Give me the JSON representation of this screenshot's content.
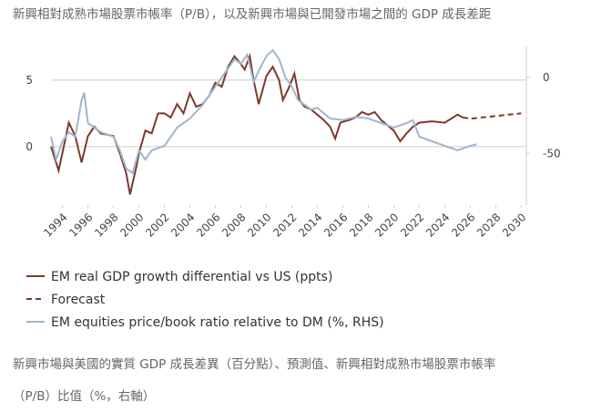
{
  "chart_data": {
    "type": "line",
    "title": "新興相對成熟市場股票市帳率（P/B），以及新興市場與已開發市場之間的 GDP 成長差距",
    "caption": [
      "新興市場與美國的實質 GDP 成長差異（百分點）、預測值、新興相對成熟市場股票市帳率",
      "（P/B）比值（%，右軸）"
    ],
    "xlim": [
      1993.1,
      2030.4
    ],
    "xticks": [
      1994,
      1996,
      1998,
      2000,
      2002,
      2004,
      2006,
      2008,
      2010,
      2012,
      2014,
      2016,
      2018,
      2020,
      2022,
      2024,
      2026,
      2028,
      2030
    ],
    "ylim": [
      -4.4,
      7.6
    ],
    "yticks": [
      0,
      5
    ],
    "y2lim": [
      -84,
      21
    ],
    "y2ticks": [
      -50,
      0
    ],
    "grid": true,
    "series": [
      {
        "name": "EM real GDP growth differential vs US (ppts)",
        "color": "#7b3a2c",
        "line_style": "solid",
        "x": [
          1993.1,
          1993.7,
          1994.5,
          1995,
          1995.5,
          1996,
          1996.5,
          1997,
          1998,
          1998.5,
          1999,
          1999.3,
          1999.8,
          2000,
          2000.5,
          2001,
          2001.5,
          2002,
          2002.5,
          2003,
          2003.5,
          2004,
          2004.5,
          2005,
          2005.5,
          2006,
          2006.5,
          2007,
          2007.5,
          2008,
          2008.3,
          2008.7,
          2009,
          2009.4,
          2010,
          2010.5,
          2011,
          2011.3,
          2011.8,
          2012.2,
          2012.6,
          2013,
          2013.5,
          2014,
          2014.5,
          2015,
          2015.4,
          2015.8,
          2016.5,
          2017,
          2017.5,
          2018,
          2018.5,
          2019,
          2019.5,
          2020,
          2020.5,
          2021,
          2021.5,
          2022,
          2023,
          2024,
          2025,
          2025.4
        ],
        "values": [
          0,
          -1.8,
          1.8,
          0.8,
          -1.2,
          0.8,
          1.5,
          1.0,
          0.8,
          -0.5,
          -2.0,
          -3.6,
          -1.5,
          -0.5,
          1.2,
          1.0,
          2.5,
          2.5,
          2.2,
          3.2,
          2.5,
          4.0,
          3.0,
          3.2,
          3.8,
          4.8,
          4.5,
          6.0,
          6.8,
          6.2,
          5.8,
          6.8,
          5.0,
          3.2,
          5.3,
          6.0,
          5.0,
          3.5,
          4.5,
          5.5,
          3.5,
          3.0,
          2.8,
          2.4,
          2.0,
          1.5,
          0.6,
          1.8,
          2.0,
          2.2,
          2.6,
          2.4,
          2.6,
          2.0,
          1.6,
          1.2,
          0.4,
          1.0,
          1.5,
          1.8,
          1.9,
          1.8,
          2.4,
          2.2
        ]
      },
      {
        "name": "Forecast",
        "color": "#7b3a2c",
        "line_style": "dashed",
        "x": [
          2025.4,
          2026,
          2027,
          2028,
          2029,
          2030
        ],
        "values": [
          2.2,
          2.1,
          2.2,
          2.3,
          2.4,
          2.5
        ]
      },
      {
        "name": "EM equities price/book ratio relative to DM (%, RHS)",
        "color": "#a3b6cc",
        "line_style": "solid",
        "axis": "y2",
        "x": [
          1993.1,
          1993.5,
          1994,
          1994.5,
          1995,
          1995.5,
          1995.7,
          1996,
          1997,
          1998,
          1998.5,
          1999,
          1999.5,
          2000,
          2000.5,
          2001,
          2002,
          2002.5,
          2003,
          2004,
          2005,
          2006,
          2007,
          2007.5,
          2008,
          2008.5,
          2009,
          2009.5,
          2010,
          2010.5,
          2011,
          2011.5,
          2012,
          2012.5,
          2013,
          2013.5,
          2014,
          2015,
          2016,
          2017,
          2018,
          2019,
          2020,
          2021,
          2021.5,
          2022,
          2023,
          2024,
          2025,
          2026,
          2026.5
        ],
        "values": [
          -39,
          -54,
          -42,
          -36,
          -39,
          -15,
          -10,
          -30,
          -36,
          -39,
          -48,
          -60,
          -63,
          -48,
          -54,
          -48,
          -45,
          -39,
          -33,
          -27,
          -18,
          -6,
          6,
          12,
          9,
          15,
          -3,
          6,
          14,
          18,
          12,
          0,
          -6,
          -15,
          -18,
          -21,
          -20,
          -27,
          -28,
          -26,
          -27,
          -30,
          -33,
          -30,
          -28,
          -39,
          -42,
          -45,
          -48,
          -45,
          -44
        ]
      }
    ]
  }
}
